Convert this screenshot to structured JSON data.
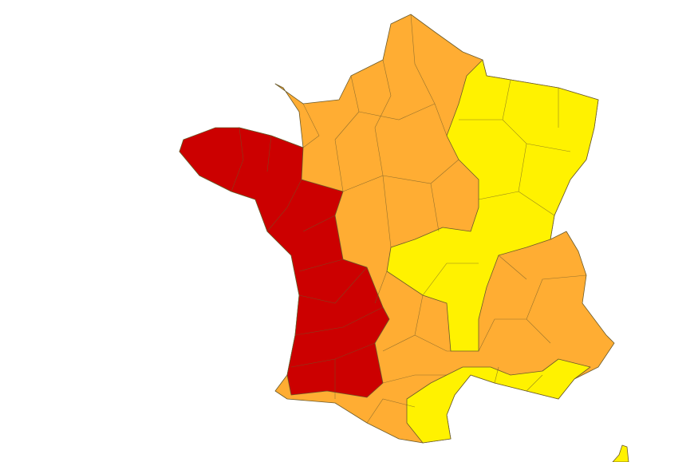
{
  "map": {
    "alert_levels": [
      {
        "level": "red",
        "color": "#cc0000"
      },
      {
        "level": "orange",
        "color": "#ffad33"
      },
      {
        "level": "yellow",
        "color": "#fff200"
      }
    ],
    "background": "#ffffff"
  }
}
